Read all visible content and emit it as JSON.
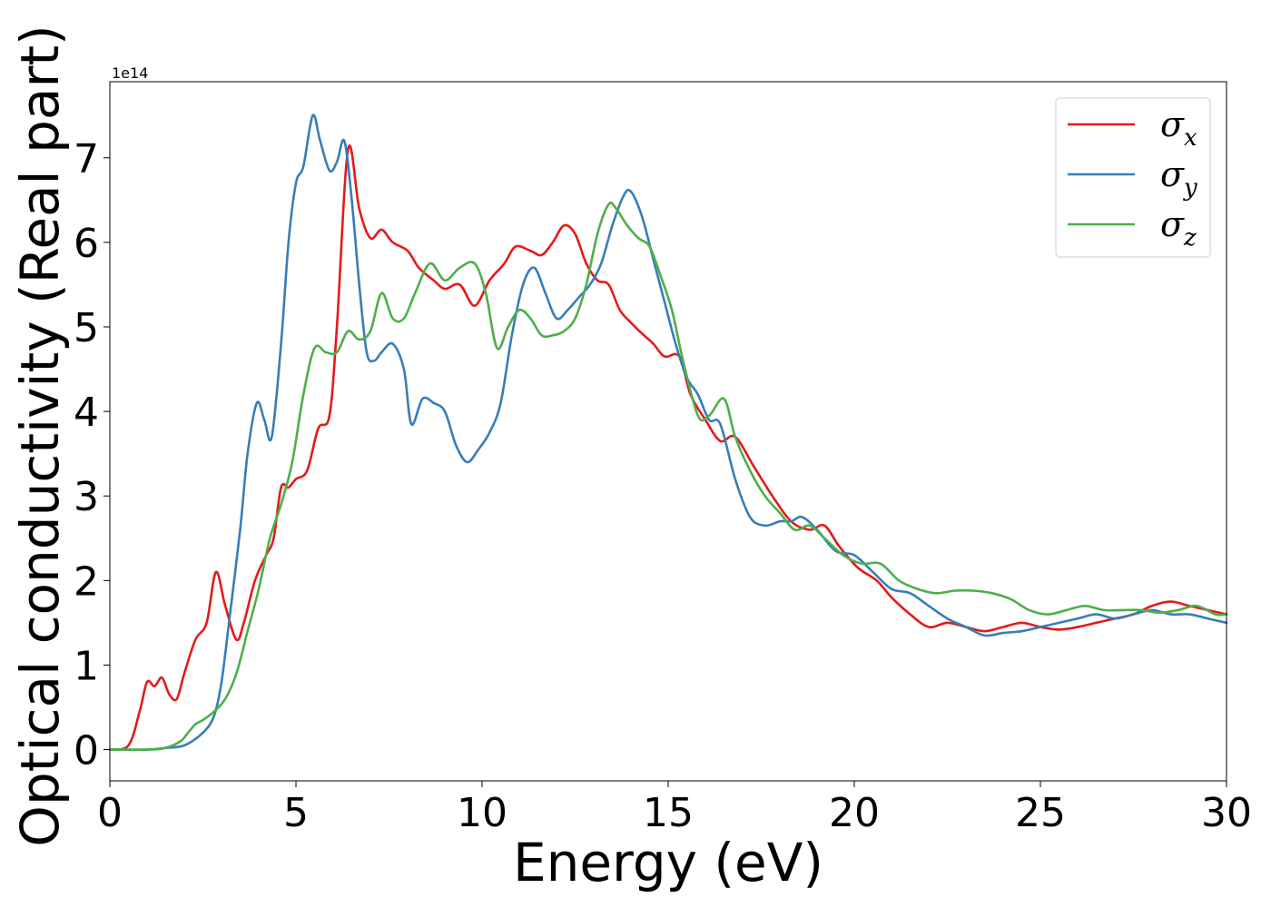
{
  "chart_data": {
    "type": "line",
    "title": "",
    "xlabel": "Energy (eV)",
    "ylabel": "Optical conductivity (Real part)",
    "y_offset_label": "1e14",
    "xlim": [
      0,
      30
    ],
    "ylim": [
      -0.37,
      7.9
    ],
    "xticks": [
      0,
      5,
      10,
      15,
      20,
      25,
      30
    ],
    "yticks": [
      0,
      1,
      2,
      3,
      4,
      5,
      6,
      7
    ],
    "grid": false,
    "legend_position": "top-right",
    "series": [
      {
        "name": "σx",
        "label_main": "σ",
        "label_sub": "x",
        "color": "#e41a1c",
        "x": [
          0,
          0.5,
          0.8,
          1.0,
          1.2,
          1.4,
          1.6,
          1.8,
          2.0,
          2.3,
          2.6,
          2.85,
          3.1,
          3.4,
          3.6,
          3.9,
          4.2,
          4.4,
          4.6,
          4.8,
          5.0,
          5.3,
          5.6,
          5.9,
          6.1,
          6.4,
          6.7,
          7.0,
          7.3,
          7.6,
          8.0,
          8.3,
          8.7,
          9.0,
          9.4,
          9.8,
          10.2,
          10.6,
          10.9,
          11.3,
          11.6,
          11.9,
          12.2,
          12.5,
          12.8,
          13.1,
          13.4,
          13.7,
          14.0,
          14.3,
          14.6,
          14.9,
          15.3,
          15.6,
          16.0,
          16.4,
          16.8,
          17.3,
          17.8,
          18.3,
          18.8,
          19.2,
          19.6,
          20.1,
          20.6,
          21.0,
          21.5,
          22.0,
          22.5,
          23.0,
          23.5,
          24.0,
          24.5,
          25.0,
          25.5,
          26.0,
          26.5,
          27.0,
          27.5,
          28.0,
          28.5,
          29.0,
          29.5,
          30.0
        ],
        "y": [
          0,
          0.05,
          0.45,
          0.8,
          0.75,
          0.85,
          0.65,
          0.6,
          0.9,
          1.3,
          1.5,
          2.1,
          1.7,
          1.3,
          1.5,
          2.0,
          2.3,
          2.5,
          3.1,
          3.1,
          3.2,
          3.3,
          3.8,
          3.95,
          5.0,
          7.1,
          6.4,
          6.05,
          6.15,
          6.0,
          5.9,
          5.7,
          5.55,
          5.45,
          5.5,
          5.25,
          5.55,
          5.75,
          5.95,
          5.9,
          5.85,
          6.0,
          6.2,
          6.1,
          5.75,
          5.55,
          5.5,
          5.2,
          5.05,
          4.92,
          4.8,
          4.65,
          4.65,
          4.2,
          3.9,
          3.65,
          3.7,
          3.35,
          3.0,
          2.7,
          2.6,
          2.65,
          2.4,
          2.15,
          2.0,
          1.8,
          1.6,
          1.45,
          1.5,
          1.45,
          1.4,
          1.45,
          1.5,
          1.45,
          1.42,
          1.45,
          1.5,
          1.55,
          1.6,
          1.7,
          1.75,
          1.7,
          1.65,
          1.6
        ]
      },
      {
        "name": "σy",
        "label_main": "σ",
        "label_sub": "y",
        "color": "#377eb8",
        "x": [
          0,
          1.0,
          1.5,
          2.0,
          2.5,
          2.8,
          3.0,
          3.2,
          3.5,
          3.7,
          3.95,
          4.15,
          4.35,
          4.6,
          4.8,
          5.0,
          5.2,
          5.45,
          5.65,
          5.9,
          6.1,
          6.3,
          6.5,
          6.7,
          6.9,
          7.1,
          7.3,
          7.6,
          7.9,
          8.1,
          8.4,
          8.7,
          9.0,
          9.3,
          9.6,
          9.9,
          10.2,
          10.5,
          10.8,
          11.1,
          11.4,
          11.7,
          12.0,
          12.3,
          12.6,
          12.9,
          13.2,
          13.5,
          13.8,
          14.0,
          14.3,
          14.6,
          14.9,
          15.2,
          15.5,
          15.8,
          16.1,
          16.4,
          16.8,
          17.2,
          17.6,
          18.0,
          18.3,
          18.6,
          19.0,
          19.5,
          20.0,
          20.5,
          21.0,
          21.5,
          22.0,
          22.5,
          23.0,
          23.5,
          24.0,
          24.5,
          25.0,
          25.5,
          26.0,
          26.5,
          27.0,
          27.5,
          28.0,
          28.5,
          29.0,
          29.5,
          30.0
        ],
        "y": [
          0,
          0,
          0.02,
          0.05,
          0.2,
          0.4,
          0.8,
          1.5,
          2.6,
          3.5,
          4.1,
          3.9,
          3.7,
          4.8,
          6.0,
          6.7,
          6.9,
          7.5,
          7.2,
          6.85,
          6.95,
          7.2,
          6.5,
          5.5,
          4.7,
          4.6,
          4.7,
          4.8,
          4.5,
          3.85,
          4.15,
          4.1,
          4.0,
          3.6,
          3.4,
          3.55,
          3.75,
          4.1,
          4.9,
          5.5,
          5.7,
          5.4,
          5.1,
          5.2,
          5.35,
          5.5,
          5.75,
          6.2,
          6.55,
          6.6,
          6.3,
          5.8,
          5.3,
          4.8,
          4.4,
          4.2,
          3.9,
          3.85,
          3.2,
          2.75,
          2.65,
          2.7,
          2.7,
          2.75,
          2.6,
          2.35,
          2.3,
          2.1,
          1.9,
          1.85,
          1.7,
          1.55,
          1.45,
          1.35,
          1.38,
          1.4,
          1.45,
          1.5,
          1.55,
          1.6,
          1.55,
          1.6,
          1.65,
          1.6,
          1.6,
          1.55,
          1.5
        ]
      },
      {
        "name": "σz",
        "label_main": "σ",
        "label_sub": "z",
        "color": "#4daf4a",
        "x": [
          0,
          1.0,
          1.5,
          1.9,
          2.1,
          2.3,
          2.5,
          2.8,
          3.1,
          3.4,
          3.7,
          4.0,
          4.3,
          4.6,
          4.9,
          5.2,
          5.5,
          5.8,
          6.1,
          6.4,
          6.7,
          7.0,
          7.3,
          7.6,
          7.9,
          8.2,
          8.6,
          9.0,
          9.4,
          9.8,
          10.1,
          10.4,
          10.7,
          11.0,
          11.3,
          11.6,
          11.9,
          12.2,
          12.5,
          12.8,
          13.1,
          13.4,
          13.6,
          13.9,
          14.2,
          14.5,
          14.8,
          15.1,
          15.4,
          15.8,
          16.1,
          16.5,
          16.8,
          17.2,
          17.6,
          18.0,
          18.4,
          18.8,
          19.2,
          19.7,
          20.2,
          20.7,
          21.2,
          21.7,
          22.2,
          22.7,
          23.2,
          23.7,
          24.2,
          24.7,
          25.2,
          25.7,
          26.2,
          26.7,
          27.2,
          27.7,
          28.2,
          28.7,
          29.2,
          29.7,
          30.0
        ],
        "y": [
          0,
          0,
          0.02,
          0.1,
          0.2,
          0.3,
          0.35,
          0.45,
          0.6,
          0.9,
          1.4,
          1.9,
          2.5,
          2.9,
          3.4,
          4.2,
          4.75,
          4.7,
          4.7,
          4.95,
          4.85,
          4.95,
          5.4,
          5.1,
          5.1,
          5.4,
          5.75,
          5.55,
          5.7,
          5.75,
          5.4,
          4.75,
          5.0,
          5.2,
          5.1,
          4.9,
          4.9,
          4.95,
          5.1,
          5.5,
          6.1,
          6.45,
          6.4,
          6.2,
          6.05,
          5.95,
          5.6,
          5.2,
          4.6,
          3.95,
          3.95,
          4.15,
          3.7,
          3.3,
          3.0,
          2.8,
          2.6,
          2.65,
          2.5,
          2.3,
          2.2,
          2.2,
          2.0,
          1.9,
          1.85,
          1.88,
          1.88,
          1.85,
          1.78,
          1.65,
          1.6,
          1.65,
          1.7,
          1.65,
          1.65,
          1.65,
          1.62,
          1.65,
          1.7,
          1.6,
          1.6
        ]
      }
    ]
  }
}
